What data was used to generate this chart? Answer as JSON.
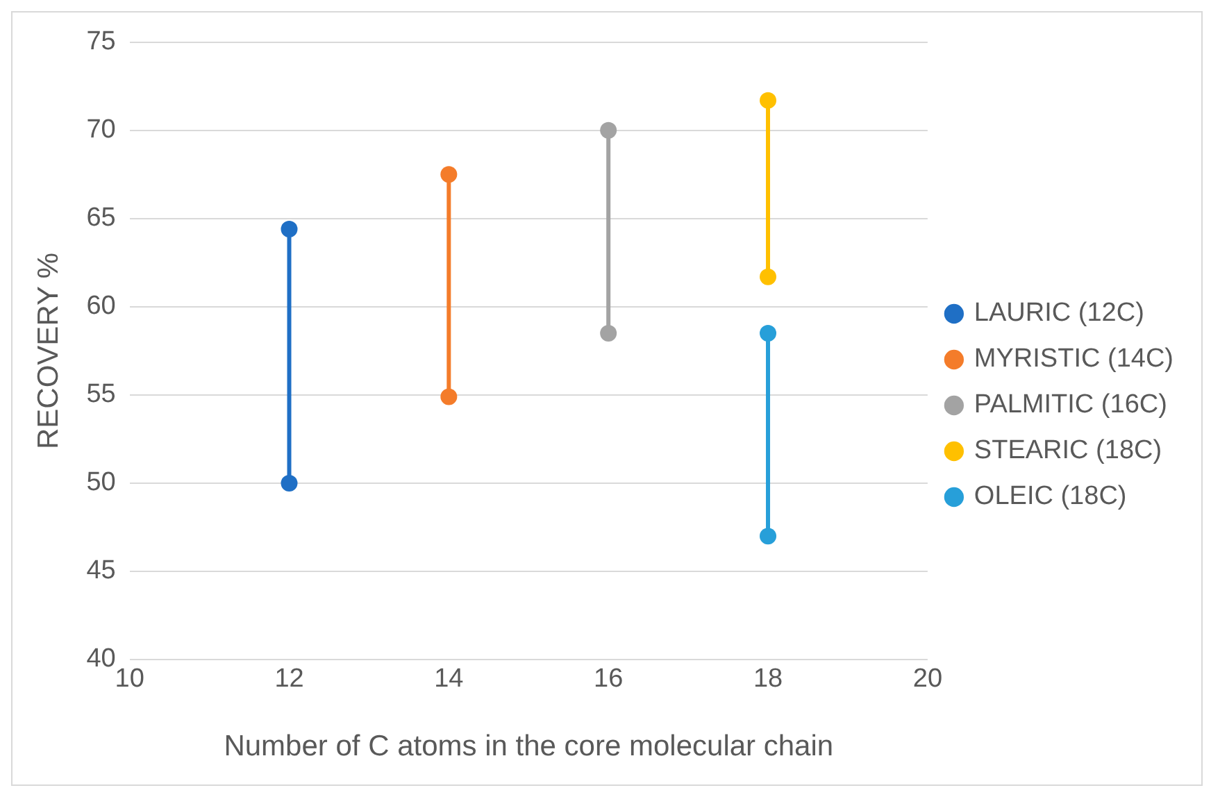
{
  "chart_data": {
    "type": "line",
    "xlabel": "Number of C atoms in the core molecular chain",
    "ylabel": "RECOVERY %",
    "xlim": [
      10,
      20
    ],
    "xticks": [
      10,
      12,
      14,
      16,
      18,
      20
    ],
    "ylim": [
      40,
      75
    ],
    "yticks": [
      40,
      45,
      50,
      55,
      60,
      65,
      70,
      75
    ],
    "grid": "y",
    "legend": "right",
    "marker": "circle",
    "line_style": "solid",
    "series": [
      {
        "name": "LAURIC (12C)",
        "color": "#1f6fc5",
        "x": [
          12,
          12
        ],
        "values": [
          64.4,
          50
        ]
      },
      {
        "name": "MYRISTIC (14C)",
        "color": "#f47c2a",
        "x": [
          14,
          14
        ],
        "values": [
          67.5,
          54.9
        ]
      },
      {
        "name": "PALMITIC (16C)",
        "color": "#a3a3a3",
        "x": [
          16,
          16
        ],
        "values": [
          70,
          58.5
        ]
      },
      {
        "name": "STEARIC (18C)",
        "color": "#ffc000",
        "x": [
          18,
          18
        ],
        "values": [
          71.7,
          61.7
        ]
      },
      {
        "name": "OLEIC (18C)",
        "color": "#279fd9",
        "x": [
          18,
          18
        ],
        "values": [
          58.5,
          47
        ]
      }
    ]
  }
}
